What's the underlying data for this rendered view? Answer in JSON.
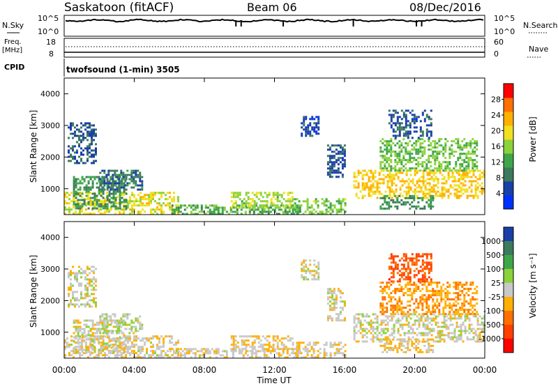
{
  "header": {
    "station": "Saskatoon (fitACF)",
    "beam": "Beam 06",
    "date": "08/Dec/2016"
  },
  "noise_panel": {
    "left_label": "N.Sky",
    "right_label": "N.Search",
    "left_ticks": [
      "10^5",
      "10^0"
    ],
    "right_ticks": [
      "10^5",
      "10^0"
    ]
  },
  "freq_panel": {
    "left_label_1": "Freq.",
    "left_label_2": "[MHz]",
    "right_label": "Nave",
    "left_ticks": [
      "18",
      "8"
    ],
    "right_ticks": [
      "60",
      "0"
    ]
  },
  "cpid": {
    "label": "CPID",
    "program": "twofsound (1-min) 3505"
  },
  "power_panel": {
    "ylabel": "Slant Range [km]",
    "yticks": [
      "4000",
      "3000",
      "2000",
      "1000"
    ],
    "colorbar_label": "Power [dB]",
    "colorbar_ticks": [
      "28",
      "24",
      "20",
      "16",
      "12",
      "8",
      "4"
    ],
    "colors": [
      "#0030ff",
      "#1a3fa6",
      "#3c7a5c",
      "#3ea64a",
      "#8cd23a",
      "#f0e020",
      "#ffb000",
      "#ff7000",
      "#ff0000"
    ]
  },
  "velocity_panel": {
    "ylabel": "Slant Range [km]",
    "yticks": [
      "4000",
      "3000",
      "2000",
      "1000"
    ],
    "colorbar_label": "Velocity [m s⁻¹]",
    "colorbar_ticks": [
      "1000",
      "500",
      "100",
      "25",
      "-25",
      "-100",
      "-500",
      "-1000"
    ],
    "colors": [
      "#1a3fa6",
      "#3c7a5c",
      "#3ea64a",
      "#8cd23a",
      "#c8c8c8",
      "#ffb000",
      "#ff7000",
      "#ff4000",
      "#ff0000"
    ]
  },
  "time_axis": {
    "ticks": [
      "00:00",
      "04:00",
      "08:00",
      "12:00",
      "16:00",
      "20:00",
      "00:00"
    ],
    "label": "Time UT"
  },
  "chart_data": [
    {
      "type": "heatmap",
      "quantity": "power",
      "ylabel": "Slant Range [km]",
      "colorbar_label": "Power [dB]",
      "xlim_hours": [
        0,
        24
      ],
      "ylim_km": [
        180,
        4500
      ],
      "clim": [
        0,
        30
      ],
      "patches": [
        {
          "t": [
            0.0,
            6.5
          ],
          "r": [
            200,
            900
          ],
          "v": 18
        },
        {
          "t": [
            0.5,
            3.5
          ],
          "r": [
            400,
            1400
          ],
          "v": 10
        },
        {
          "t": [
            0.2,
            1.8
          ],
          "r": [
            1800,
            3100
          ],
          "v": 6
        },
        {
          "t": [
            2.0,
            4.5
          ],
          "r": [
            1000,
            1600
          ],
          "v": 8
        },
        {
          "t": [
            6.0,
            13.5
          ],
          "r": [
            200,
            500
          ],
          "v": 12
        },
        {
          "t": [
            9.5,
            13.0
          ],
          "r": [
            400,
            900
          ],
          "v": 16
        },
        {
          "t": [
            13.0,
            16.0
          ],
          "r": [
            200,
            700
          ],
          "v": 14
        },
        {
          "t": [
            13.5,
            14.5
          ],
          "r": [
            2700,
            3300
          ],
          "v": 5
        },
        {
          "t": [
            15.0,
            16.0
          ],
          "r": [
            1400,
            2400
          ],
          "v": 6
        },
        {
          "t": [
            16.5,
            24.0
          ],
          "r": [
            700,
            1600
          ],
          "v": 20
        },
        {
          "t": [
            18.0,
            23.5
          ],
          "r": [
            1600,
            2600
          ],
          "v": 14
        },
        {
          "t": [
            18.5,
            21.0
          ],
          "r": [
            2600,
            3500
          ],
          "v": 6
        },
        {
          "t": [
            18.0,
            21.0
          ],
          "r": [
            400,
            800
          ],
          "v": 10
        }
      ]
    },
    {
      "type": "heatmap",
      "quantity": "velocity",
      "ylabel": "Slant Range [km]",
      "colorbar_label": "Velocity [m s⁻¹]",
      "xlim_hours": [
        0,
        24
      ],
      "ylim_km": [
        180,
        4500
      ],
      "clim": [
        -1000,
        1000
      ],
      "patches": [
        {
          "t": [
            0.0,
            6.5
          ],
          "r": [
            200,
            900
          ],
          "v": -60
        },
        {
          "t": [
            0.5,
            3.5
          ],
          "r": [
            400,
            1400
          ],
          "v": 0
        },
        {
          "t": [
            0.2,
            1.8
          ],
          "r": [
            1800,
            3100
          ],
          "v": 0
        },
        {
          "t": [
            2.0,
            4.5
          ],
          "r": [
            1000,
            1600
          ],
          "v": 60
        },
        {
          "t": [
            6.0,
            13.5
          ],
          "r": [
            200,
            500
          ],
          "v": -60
        },
        {
          "t": [
            9.5,
            13.0
          ],
          "r": [
            400,
            900
          ],
          "v": -80
        },
        {
          "t": [
            13.0,
            16.0
          ],
          "r": [
            200,
            700
          ],
          "v": -90
        },
        {
          "t": [
            13.5,
            14.5
          ],
          "r": [
            2700,
            3300
          ],
          "v": 0
        },
        {
          "t": [
            15.0,
            16.0
          ],
          "r": [
            1400,
            2400
          ],
          "v": 0
        },
        {
          "t": [
            16.5,
            24.0
          ],
          "r": [
            700,
            1600
          ],
          "v": 0
        },
        {
          "t": [
            18.0,
            23.5
          ],
          "r": [
            1600,
            2600
          ],
          "v": -300
        },
        {
          "t": [
            18.5,
            21.0
          ],
          "r": [
            2600,
            3500
          ],
          "v": -600
        },
        {
          "t": [
            18.0,
            21.0
          ],
          "r": [
            400,
            800
          ],
          "v": -150
        }
      ]
    }
  ],
  "noise_series": {
    "sky_level": 0.75,
    "spike_hours": [
      9.8,
      10.1,
      12.5,
      16.5,
      20.1,
      20.4
    ]
  }
}
